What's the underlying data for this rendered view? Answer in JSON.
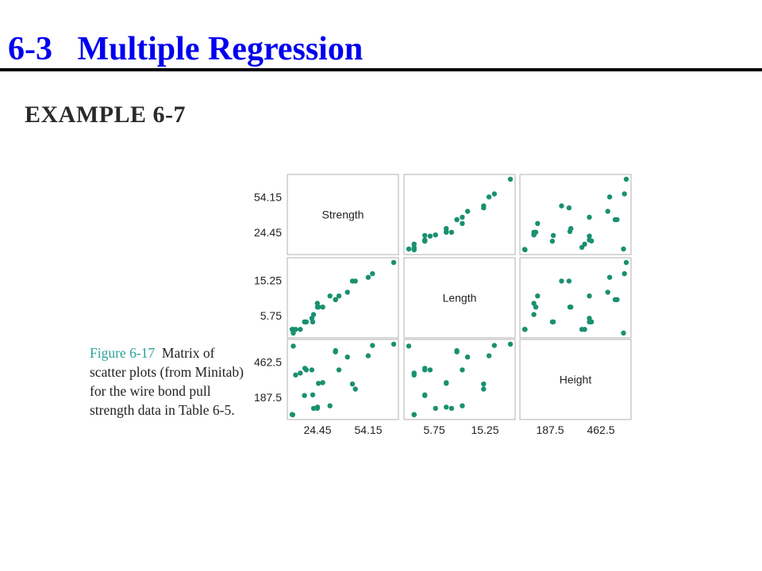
{
  "slide": {
    "title": "6-3   Multiple Regression",
    "title_color": "#0000ee",
    "example_label": "EXAMPLE 6-7"
  },
  "figure": {
    "caption_label": "Figure 6-17",
    "caption_text": "Matrix of scatter plots (from Minitab) for the wire bond pull strength data in Table 6-5."
  },
  "chart_data": {
    "type": "scatter",
    "subtype": "scatterplot-matrix",
    "point_color": "#1a9070",
    "variables": [
      {
        "name": "Strength",
        "tick_labels": [
          "24.45",
          "54.15"
        ],
        "tick_values": [
          24.45,
          54.15
        ],
        "range": [
          9.6,
          69.0
        ]
      },
      {
        "name": "Length",
        "tick_labels": [
          "5.75",
          "15.25"
        ],
        "tick_values": [
          5.75,
          15.25
        ],
        "range": [
          1.0,
          20.0
        ]
      },
      {
        "name": "Height",
        "tick_labels": [
          "187.5",
          "462.5"
        ],
        "tick_values": [
          187.5,
          462.5
        ],
        "range": [
          50.0,
          600.0
        ]
      }
    ],
    "observations": {
      "strength": [
        9.95,
        24.45,
        31.75,
        35.0,
        25.02,
        16.86,
        14.38,
        9.6,
        24.35,
        27.5,
        17.08,
        37.0,
        41.95,
        11.66,
        21.65,
        17.89,
        69.0,
        10.3,
        34.93,
        46.59,
        44.88,
        54.12,
        56.63,
        22.13,
        21.15
      ],
      "length": [
        2,
        8,
        11,
        10,
        8,
        4,
        2,
        2,
        9,
        8,
        4,
        11,
        12,
        2,
        4,
        4,
        20,
        1,
        10,
        15,
        15,
        16,
        17,
        6,
        5
      ],
      "height": [
        50,
        110,
        120,
        550,
        295,
        200,
        375,
        52,
        100,
        300,
        412,
        400,
        500,
        360,
        205,
        400,
        600,
        585,
        540,
        250,
        290,
        510,
        590,
        100,
        400
      ]
    }
  }
}
